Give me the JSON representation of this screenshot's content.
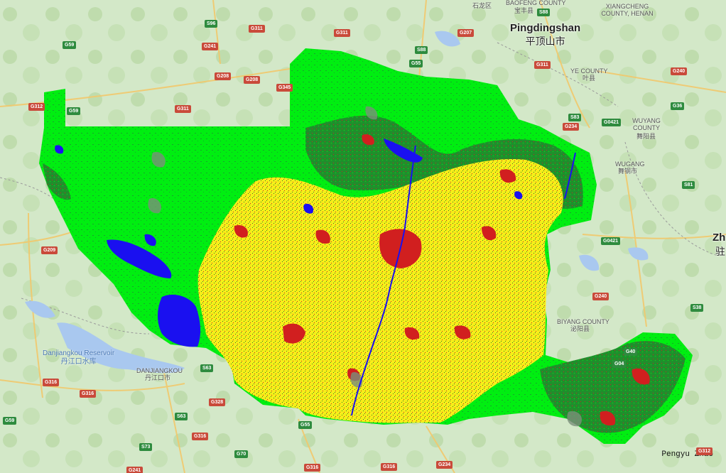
{
  "map": {
    "colors": {
      "base": "#cfe6c4",
      "forest": "#00ee11",
      "dense_forest": "#1f8f2c",
      "cropland": "#f6ee19",
      "urban": "#d11f1f",
      "water": "#1a10f0",
      "grassland": "#7a8f7a"
    },
    "cities": [
      {
        "name": "Pingdingshan",
        "name_zh": "平顶山市"
      }
    ],
    "counties": [
      {
        "id": "c1",
        "text": "石龙区"
      },
      {
        "id": "c2",
        "text": "BAOFENG COUNTY"
      },
      {
        "id": "c3",
        "text": "宝丰县"
      },
      {
        "id": "c4",
        "text": "XIANGCHENG COUNTY, HENAN"
      },
      {
        "id": "c5",
        "text": "YE COUNTY"
      },
      {
        "id": "c6",
        "text": "叶县"
      },
      {
        "id": "c7",
        "text": "WUYANG COUNTY"
      },
      {
        "id": "c8",
        "text": "舞阳县"
      },
      {
        "id": "c9",
        "text": "WUGANG"
      },
      {
        "id": "c10",
        "text": "舞钢市"
      },
      {
        "id": "c11",
        "text": "BIYANG COUNTY"
      },
      {
        "id": "c12",
        "text": "泌阳县"
      },
      {
        "id": "c13",
        "text": "DANJIANGKOU"
      },
      {
        "id": "c14",
        "text": "丹江口市"
      },
      {
        "id": "c15",
        "text": "Zh"
      },
      {
        "id": "c16",
        "text": "驻"
      }
    ],
    "reservoirs": [
      {
        "name": "Danjiangkou Reservoir",
        "name_zh": "丹江口水库"
      }
    ],
    "roads": [
      {
        "label": "G311",
        "tone": "red"
      },
      {
        "label": "S96",
        "tone": "green"
      },
      {
        "label": "G311",
        "tone": "red"
      },
      {
        "label": "G207",
        "tone": "red"
      },
      {
        "label": "S88",
        "tone": "green"
      },
      {
        "label": "G59",
        "tone": "green"
      },
      {
        "label": "G241",
        "tone": "red"
      },
      {
        "label": "S88",
        "tone": "green"
      },
      {
        "label": "G55",
        "tone": "green"
      },
      {
        "label": "G311",
        "tone": "red"
      },
      {
        "label": "G208",
        "tone": "red"
      },
      {
        "label": "G208",
        "tone": "red"
      },
      {
        "label": "G345",
        "tone": "red"
      },
      {
        "label": "G312",
        "tone": "red"
      },
      {
        "label": "G59",
        "tone": "green"
      },
      {
        "label": "G311",
        "tone": "red"
      },
      {
        "label": "G240",
        "tone": "red"
      },
      {
        "label": "G36",
        "tone": "green"
      },
      {
        "label": "S83",
        "tone": "green"
      },
      {
        "label": "G234",
        "tone": "red"
      },
      {
        "label": "G0421",
        "tone": "green"
      },
      {
        "label": "S81",
        "tone": "green"
      },
      {
        "label": "G0421",
        "tone": "green"
      },
      {
        "label": "G209",
        "tone": "red"
      },
      {
        "label": "G240",
        "tone": "red"
      },
      {
        "label": "S38",
        "tone": "green"
      },
      {
        "label": "G40",
        "tone": "green"
      },
      {
        "label": "G04",
        "tone": "green"
      },
      {
        "label": "S63",
        "tone": "green"
      },
      {
        "label": "G316",
        "tone": "red"
      },
      {
        "label": "G316",
        "tone": "red"
      },
      {
        "label": "G328",
        "tone": "red"
      },
      {
        "label": "G59",
        "tone": "green"
      },
      {
        "label": "S63",
        "tone": "green"
      },
      {
        "label": "G55",
        "tone": "green"
      },
      {
        "label": "G316",
        "tone": "red"
      },
      {
        "label": "S73",
        "tone": "green"
      },
      {
        "label": "G70",
        "tone": "green"
      },
      {
        "label": "G234",
        "tone": "red"
      },
      {
        "label": "G241",
        "tone": "red"
      },
      {
        "label": "G316",
        "tone": "red"
      },
      {
        "label": "G316",
        "tone": "red"
      },
      {
        "label": "G312",
        "tone": "red"
      }
    ],
    "attribution": "Pengyu Zhao"
  }
}
